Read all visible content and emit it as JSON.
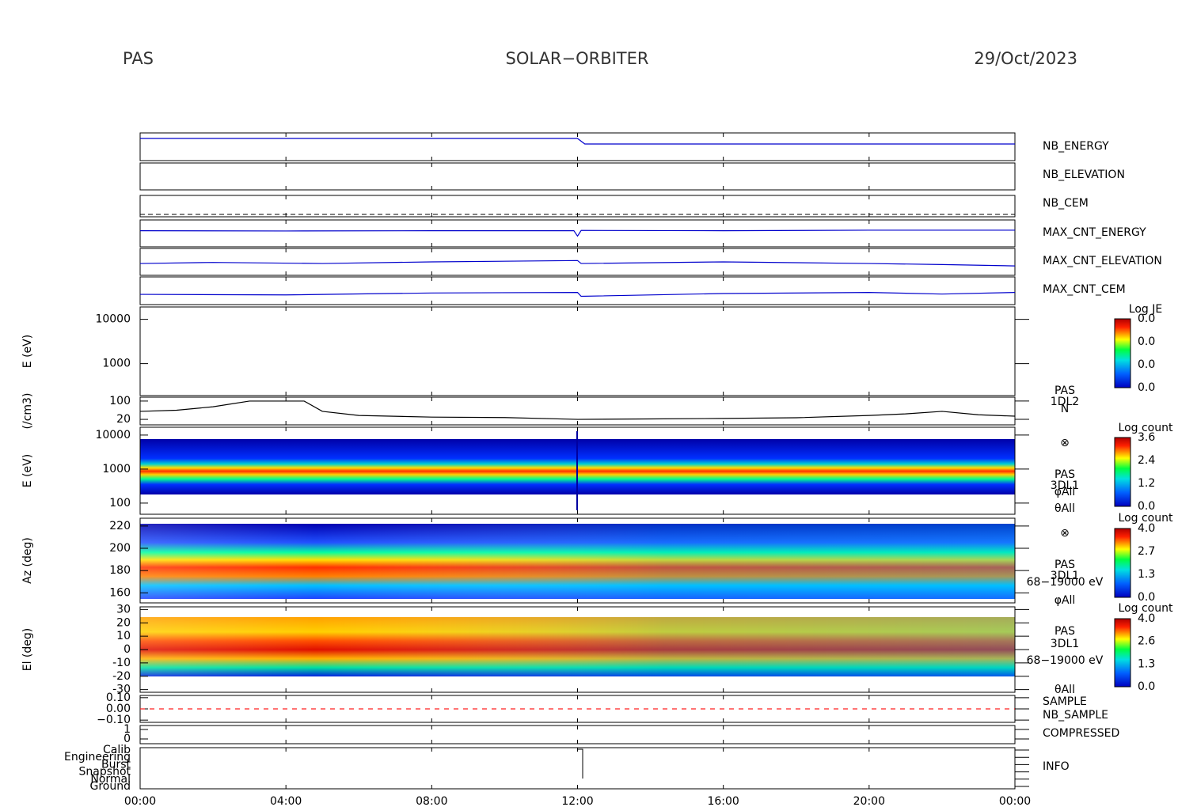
{
  "header": {
    "left": "PAS",
    "center": "SOLAR−ORBITER",
    "right": "29/Oct/2023"
  },
  "chart_data": [
    {
      "type": "line",
      "labels": [
        "NB_ENERGY"
      ],
      "label_color": "#2020c0",
      "ylim": [
        0,
        100
      ],
      "x": [
        0,
        12,
        12.2,
        24
      ],
      "series": [
        {
          "color": "#0000cc",
          "values": [
            80,
            80,
            60,
            60
          ]
        }
      ]
    },
    {
      "type": "line",
      "labels": [
        "NB_ELEVATION"
      ],
      "label_color": "#2020c0"
    },
    {
      "type": "line",
      "labels": [
        "NB_CEM"
      ],
      "label_color": "#2020c0"
    },
    {
      "type": "line",
      "labels": [
        "MAX_CNT_ENERGY"
      ],
      "label_color": "#2020c0",
      "ylim": [
        0,
        100
      ],
      "x": [
        0,
        4,
        8,
        11.9,
        12,
        12.1,
        16,
        20,
        24
      ],
      "series": [
        {
          "color": "#0000cc",
          "values": [
            60,
            59,
            60,
            60,
            40,
            61,
            60,
            62,
            62
          ]
        }
      ]
    },
    {
      "type": "line",
      "labels": [
        "MAX_CNT_ELEVATION"
      ],
      "label_color": "#2020c0",
      "ylim": [
        0,
        100
      ],
      "x": [
        0,
        2,
        5,
        8,
        12,
        12.1,
        16,
        20,
        22,
        24
      ],
      "series": [
        {
          "color": "#0000cc",
          "values": [
            44,
            48,
            44,
            50,
            55,
            44,
            50,
            44,
            40,
            35
          ]
        }
      ]
    },
    {
      "type": "line",
      "labels": [
        "MAX_CNT_CEM"
      ],
      "label_color": "#2020c0",
      "ylim": [
        0,
        100
      ],
      "x": [
        0,
        4,
        8,
        12,
        12.1,
        16,
        20,
        22,
        24
      ],
      "series": [
        {
          "color": "#0000cc",
          "values": [
            37,
            35,
            42,
            44,
            30,
            40,
            44,
            38,
            44
          ]
        }
      ]
    },
    {
      "type": "spectrogram",
      "ylabel": "E (eV)",
      "log": true,
      "ylim": [
        190,
        19000
      ],
      "yticks": [
        1000,
        10000
      ],
      "colorbar": {
        "title": "Log JE",
        "tick_labels": [
          "0.0",
          "0.0",
          "0.0",
          "0.0"
        ]
      }
    },
    {
      "type": "line",
      "ylabel": "(/cm3)",
      "labels": [
        "PAS",
        "1DL2",
        "N"
      ],
      "label_color": "#000000",
      "ylim": [
        -4,
        117
      ],
      "yticks": [
        20,
        100
      ],
      "x": [
        0,
        1,
        2,
        3,
        4.5,
        5,
        6,
        8,
        10,
        12,
        14,
        16,
        18,
        20,
        21,
        22,
        23,
        24
      ],
      "series": [
        {
          "color": "#000000",
          "values": [
            55,
            60,
            75,
            100,
            100,
            55,
            37,
            30,
            28,
            20,
            22,
            24,
            27,
            37,
            44,
            55,
            40,
            34
          ]
        }
      ]
    },
    {
      "type": "spectrogram",
      "ylabel": "E (eV)",
      "log": true,
      "ylim": [
        47,
        17000
      ],
      "yticks": [
        100,
        1000,
        10000
      ],
      "labels": [
        "⊗",
        "PAS",
        "3DL1",
        "φAll",
        "θAll"
      ],
      "label_color": "#000000",
      "colorbar": {
        "title": "Log count",
        "tick_labels": [
          "0.0",
          "1.2",
          "2.4",
          "3.6"
        ]
      }
    },
    {
      "type": "spectrogram",
      "ylabel": "Az (deg)",
      "ylim": [
        151,
        227
      ],
      "yticks": [
        160,
        180,
        200,
        220
      ],
      "labels": [
        "⊗",
        "PAS",
        "3DL1",
        "68−19000 eV",
        "φAll"
      ],
      "label_color": "#000000",
      "colorbar": {
        "title": "Log count",
        "tick_labels": [
          "0.0",
          "1.3",
          "2.7",
          "4.0"
        ]
      }
    },
    {
      "type": "spectrogram",
      "ylabel": "El (deg)",
      "ylim": [
        -32,
        32
      ],
      "yticks": [
        -30,
        -20,
        -10,
        0,
        10,
        20,
        30
      ],
      "labels": [
        "PAS",
        "3DL1",
        "68−19000 eV",
        "θAll"
      ],
      "label_color": "#000000",
      "colorbar": {
        "title": "Log count",
        "tick_labels": [
          "0.0",
          "1.3",
          "2.6",
          "4.0"
        ]
      }
    },
    {
      "type": "line",
      "ylim": [
        -0.12,
        0.12
      ],
      "yticks": [
        {
          "value": -0.1,
          "label": "−0.10"
        },
        {
          "value": 0,
          "label": "0.00"
        },
        {
          "value": 0.1,
          "label": "0.10"
        }
      ],
      "x": [
        0,
        24
      ],
      "series": [
        {
          "name": "SAMPLE",
          "color": "#2020c0",
          "values": [
            null,
            null
          ]
        },
        {
          "name": "NB_SAMPLE",
          "color": "#ff2020",
          "values": [
            0,
            0
          ]
        }
      ]
    },
    {
      "type": "line",
      "labels": [
        "COMPRESSED"
      ],
      "label_color": "#2020c0",
      "ylim": [
        -0.5,
        1.42
      ],
      "yticks": [
        0,
        1
      ]
    },
    {
      "type": "line",
      "labels": [
        "INFO"
      ],
      "label_color": "#2020c0",
      "categories": [
        "Calib",
        "Engineering",
        "Burst",
        "Snapshot",
        "Normal",
        "Ground"
      ],
      "xlim": [
        0,
        24
      ],
      "xticks": [
        {
          "value": 0,
          "label": "00:00"
        },
        {
          "value": 4,
          "label": "04:00"
        },
        {
          "value": 8,
          "label": "08:00"
        },
        {
          "value": 12,
          "label": "12:00"
        },
        {
          "value": 16,
          "label": "16:00"
        },
        {
          "value": 20,
          "label": "20:00"
        },
        {
          "value": 24,
          "label": "00:00"
        }
      ]
    }
  ]
}
